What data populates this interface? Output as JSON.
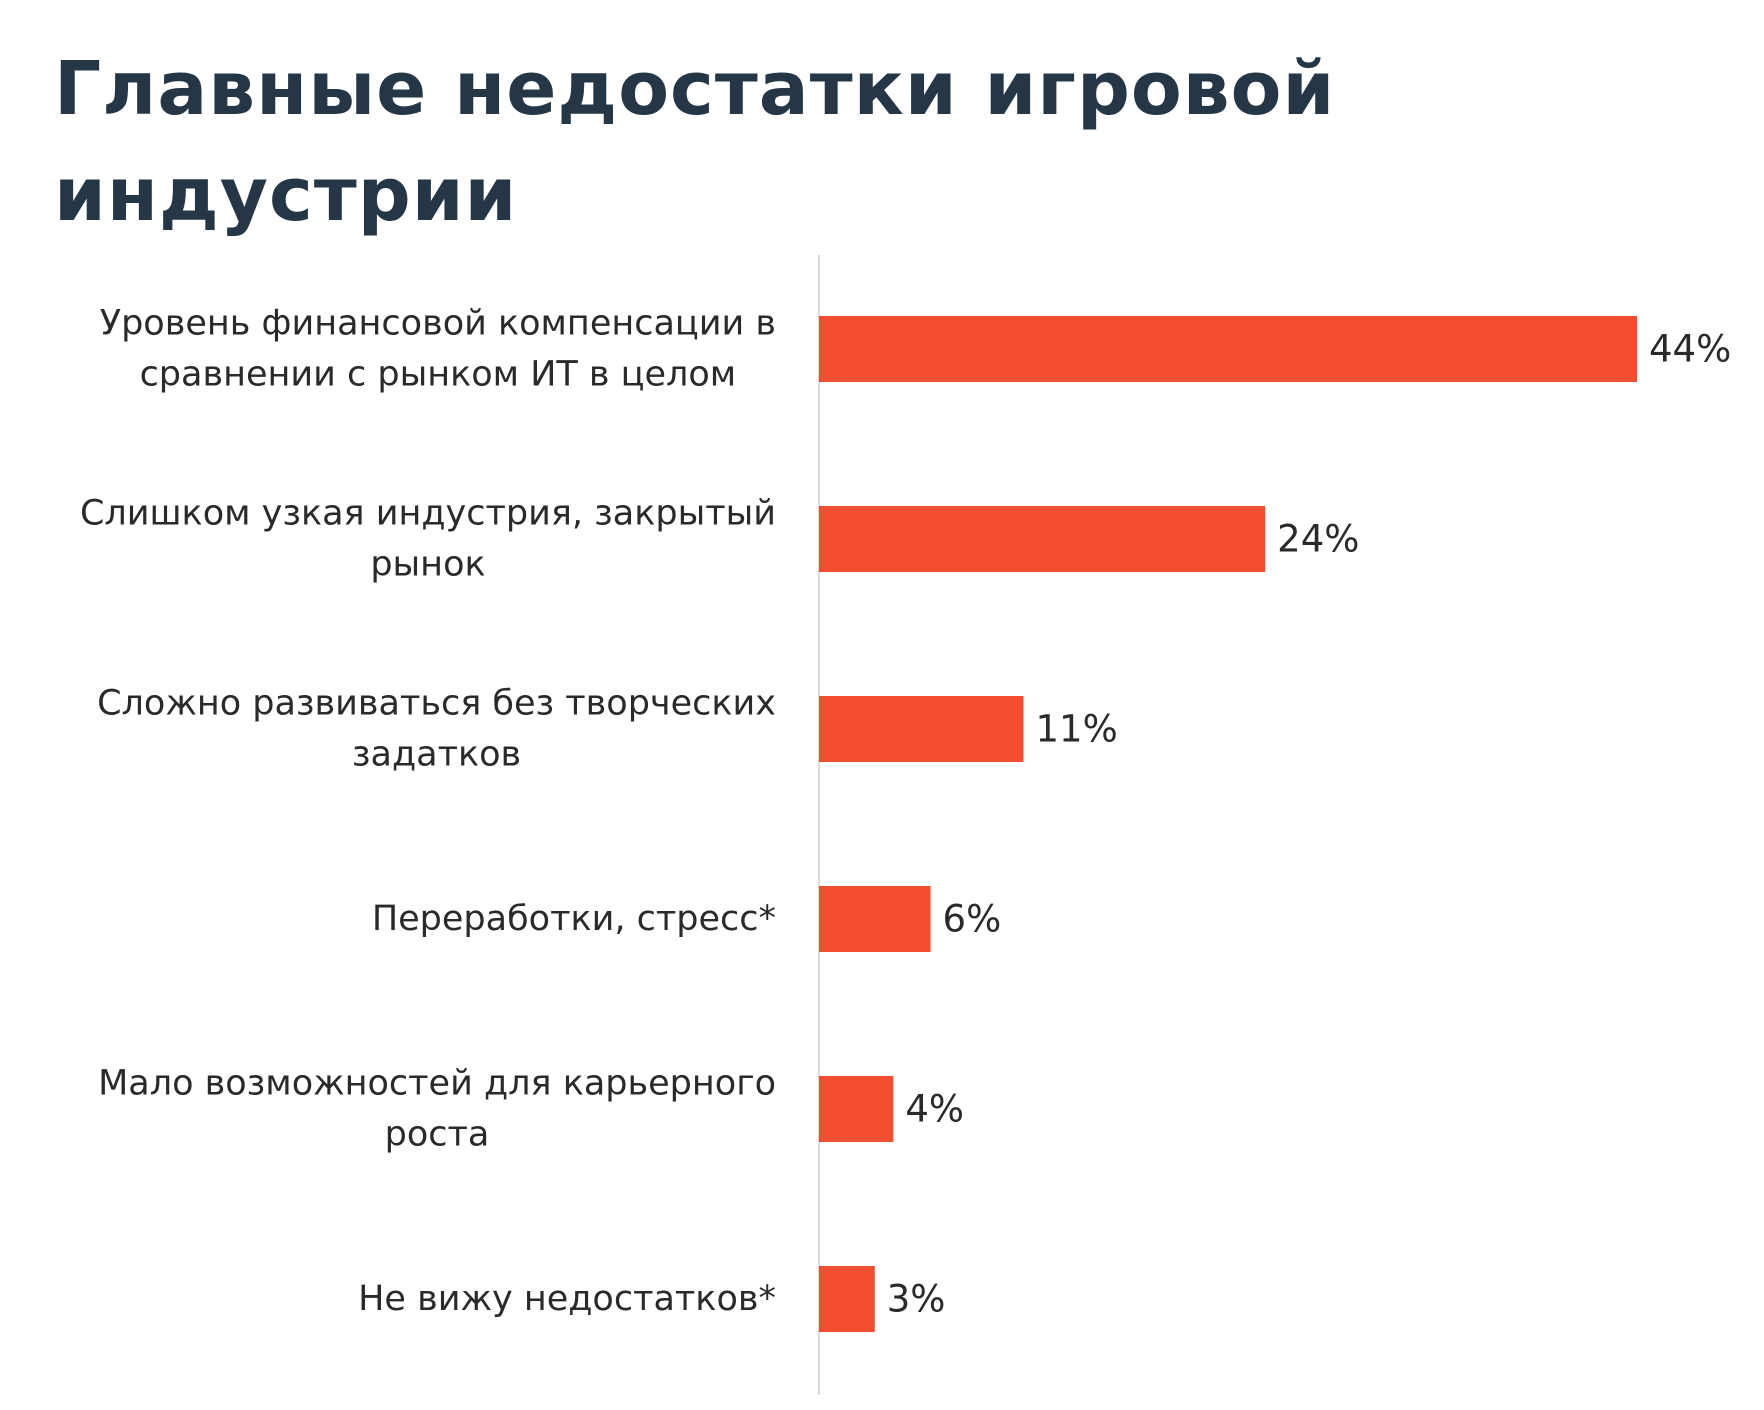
{
  "title": "Главные недостатки игровой индустрии",
  "colors": {
    "bar": "#f44e30",
    "axis": "#d9d9d9",
    "title": "#253746",
    "text": "#2a2a2a"
  },
  "chart_data": {
    "type": "bar",
    "orientation": "horizontal",
    "title": "Главные недостатки игровой индустрии",
    "xlabel": "",
    "ylabel": "",
    "unit": "%",
    "xlim": [
      0,
      44
    ],
    "grid": false,
    "legend": "none",
    "categories": [
      [
        "Уровень финансовой компенсации в",
        "сравнении с рынком ИТ в целом"
      ],
      [
        "Слишком узкая индустрия, закрытый",
        "рынок"
      ],
      [
        "Сложно развиваться без творческих",
        "задатков"
      ],
      [
        "Переработки, стресс*"
      ],
      [
        "Мало возможностей для карьерного",
        "роста"
      ],
      [
        "Не вижу недостатков*"
      ]
    ],
    "values": [
      44,
      24,
      11,
      6,
      4,
      3
    ],
    "value_labels": [
      "44%",
      "24%",
      "11%",
      "6%",
      "4%",
      "3%"
    ]
  }
}
